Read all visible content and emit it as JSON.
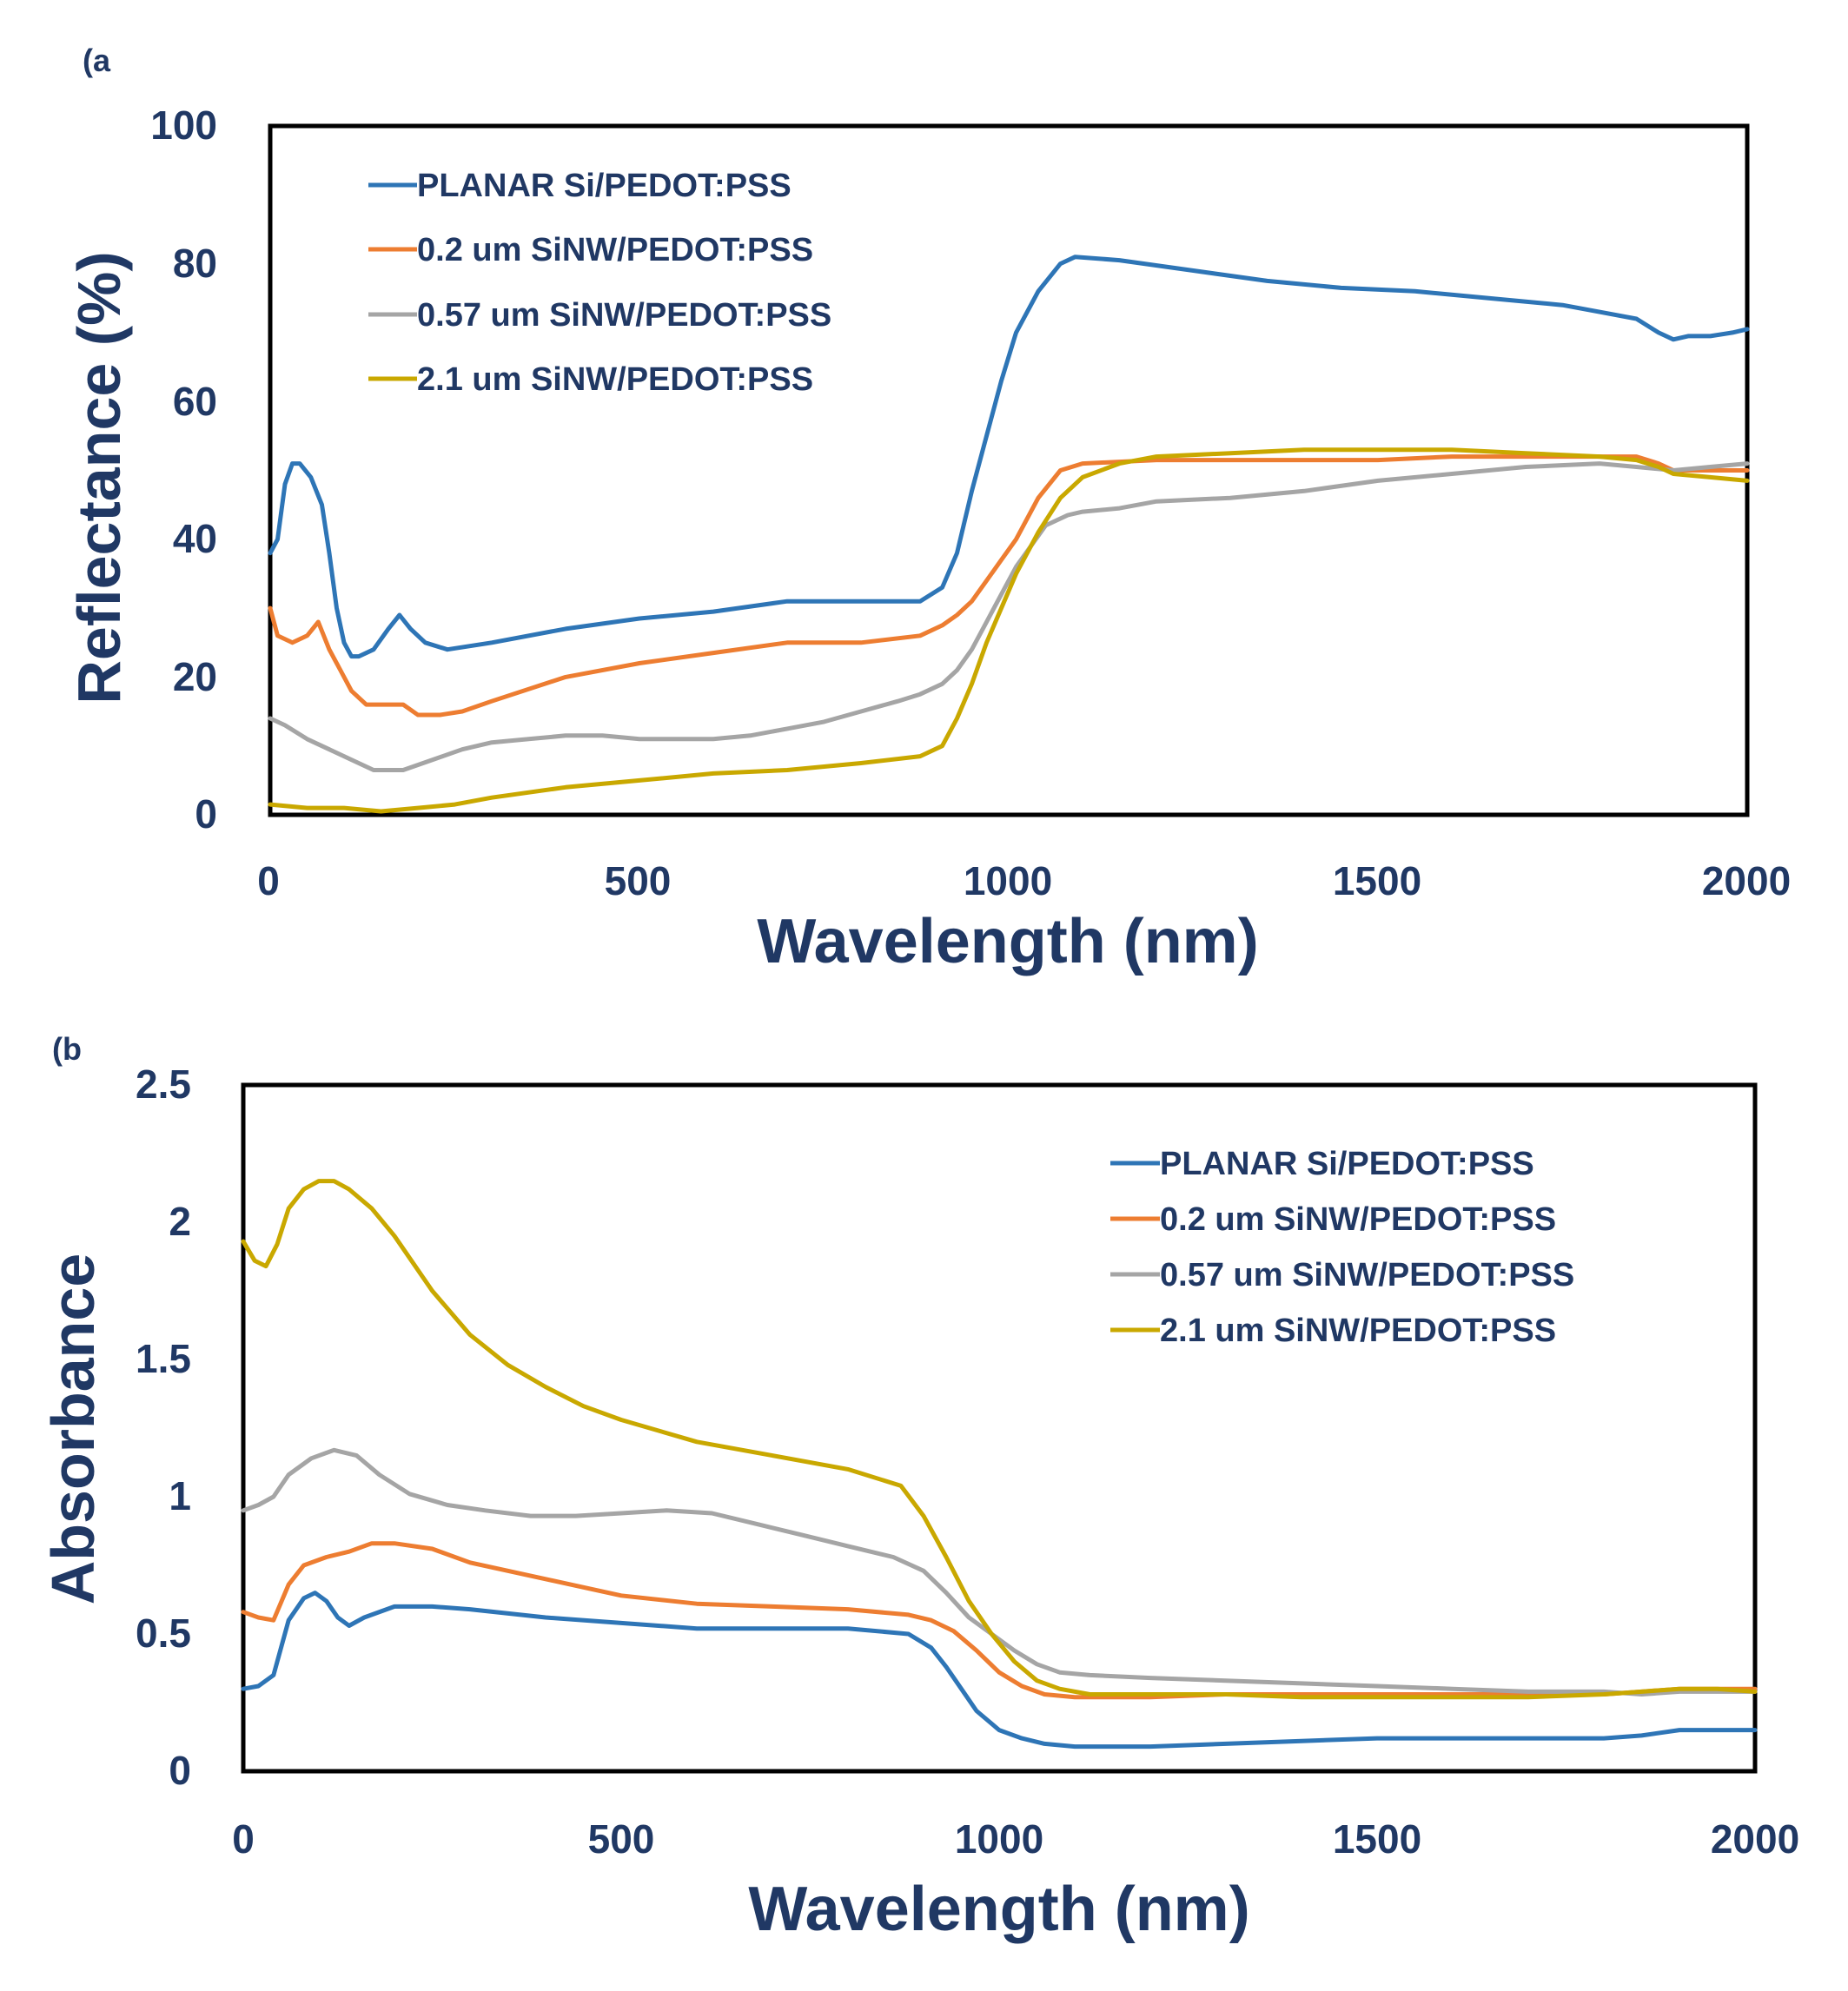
{
  "chart_data": [
    {
      "type": "line",
      "panel_label": "(a",
      "xlabel": "Wavelength (nm)",
      "ylabel": "Reflectance (%)",
      "xlim": [
        0,
        2000
      ],
      "ylim": [
        0,
        100
      ],
      "xticks": [
        "0",
        "500",
        "1000",
        "1500",
        "2000"
      ],
      "yticks": [
        "0",
        "20",
        "40",
        "60",
        "80",
        "100"
      ],
      "legend_position": "top-left",
      "grid": false,
      "series": [
        {
          "name": "PLANAR Si/PEDOT:PSS",
          "color": "#2E75B6",
          "x": [
            0,
            10,
            20,
            30,
            40,
            55,
            70,
            80,
            90,
            100,
            110,
            120,
            140,
            160,
            175,
            190,
            210,
            240,
            300,
            400,
            500,
            600,
            700,
            800,
            880,
            910,
            930,
            950,
            970,
            990,
            1010,
            1040,
            1070,
            1090,
            1150,
            1250,
            1350,
            1450,
            1550,
            1650,
            1750,
            1800,
            1850,
            1880,
            1900,
            1920,
            1950,
            1980,
            2000
          ],
          "values": [
            38,
            40,
            48,
            51,
            51,
            49,
            45,
            38,
            30,
            25,
            23,
            23,
            24,
            27,
            29,
            27,
            25,
            24,
            25,
            27,
            28.5,
            29.5,
            31,
            31,
            31,
            33,
            38,
            47,
            55,
            63,
            70,
            76,
            80,
            81,
            80.5,
            79,
            77.5,
            76.5,
            76,
            75,
            74,
            73,
            72,
            70,
            69,
            69.5,
            69.5,
            70,
            70.5
          ]
        },
        {
          "name": "0.2 um SiNW/PEDOT:PSS",
          "color": "#ED7D31",
          "x": [
            0,
            10,
            30,
            50,
            65,
            80,
            95,
            110,
            130,
            160,
            180,
            200,
            230,
            260,
            300,
            400,
            500,
            600,
            700,
            800,
            880,
            910,
            930,
            950,
            970,
            990,
            1010,
            1040,
            1070,
            1100,
            1200,
            1300,
            1400,
            1500,
            1600,
            1700,
            1800,
            1850,
            1880,
            1900,
            1950,
            2000
          ],
          "values": [
            30,
            26,
            25,
            26,
            28,
            24,
            21,
            18,
            16,
            16,
            16,
            14.5,
            14.5,
            15,
            16.5,
            20,
            22,
            23.5,
            25,
            25,
            26,
            27.5,
            29,
            31,
            34,
            37,
            40,
            46,
            50,
            51,
            51.5,
            51.5,
            51.5,
            51.5,
            52,
            52,
            52,
            52,
            51,
            50,
            50,
            50
          ]
        },
        {
          "name": "0.57 um SiNW/PEDOT:PSS",
          "color": "#A5A5A5",
          "x": [
            0,
            20,
            50,
            80,
            110,
            140,
            180,
            220,
            260,
            300,
            350,
            400,
            450,
            500,
            550,
            600,
            650,
            700,
            750,
            800,
            850,
            880,
            910,
            930,
            950,
            970,
            990,
            1010,
            1030,
            1050,
            1080,
            1100,
            1150,
            1200,
            1300,
            1400,
            1500,
            1600,
            1700,
            1800,
            1850,
            1900,
            1950,
            2000
          ],
          "values": [
            14,
            13,
            11,
            9.5,
            8,
            6.5,
            6.5,
            8,
            9.5,
            10.5,
            11,
            11.5,
            11.5,
            11,
            11,
            11,
            11.5,
            12.5,
            13.5,
            15,
            16.5,
            17.5,
            19,
            21,
            24,
            28,
            32,
            36,
            39,
            42,
            43.5,
            44,
            44.5,
            45.5,
            46,
            47,
            48.5,
            49.5,
            50.5,
            51,
            50.5,
            50,
            50.5,
            51
          ]
        },
        {
          "name": "2.1 um SiNW/PEDOT:PSS",
          "color": "#C9A800",
          "x": [
            0,
            50,
            100,
            150,
            200,
            250,
            300,
            400,
            500,
            600,
            700,
            800,
            880,
            910,
            930,
            950,
            970,
            990,
            1010,
            1040,
            1070,
            1100,
            1150,
            1200,
            1300,
            1400,
            1500,
            1600,
            1700,
            1800,
            1850,
            1880,
            1900,
            1950,
            2000
          ],
          "values": [
            1.5,
            1,
            1,
            0.5,
            1,
            1.5,
            2.5,
            4,
            5,
            6,
            6.5,
            7.5,
            8.5,
            10,
            14,
            19,
            25,
            30,
            35,
            41,
            46,
            49,
            51,
            52,
            52.5,
            53,
            53,
            53,
            52.5,
            52,
            51.5,
            50.5,
            49.5,
            49,
            48.5
          ]
        }
      ]
    },
    {
      "type": "line",
      "panel_label": "(b",
      "xlabel": "Wavelength (nm)",
      "ylabel": "Absorbance",
      "xlim": [
        0,
        2000
      ],
      "ylim": [
        0,
        2.5
      ],
      "xticks": [
        "0",
        "500",
        "1000",
        "1500",
        "2000"
      ],
      "yticks": [
        "0",
        "0.5",
        "1",
        "1.5",
        "2",
        "2.5"
      ],
      "legend_position": "top-right",
      "grid": false,
      "series": [
        {
          "name": "PLANAR Si/PEDOT:PSS",
          "color": "#2E75B6",
          "x": [
            0,
            20,
            40,
            60,
            80,
            95,
            110,
            125,
            140,
            160,
            200,
            250,
            300,
            400,
            500,
            600,
            700,
            800,
            880,
            910,
            930,
            950,
            970,
            1000,
            1030,
            1060,
            1100,
            1150,
            1200,
            1300,
            1400,
            1500,
            1600,
            1700,
            1800,
            1850,
            1900,
            1950,
            2000
          ],
          "values": [
            0.3,
            0.31,
            0.35,
            0.55,
            0.63,
            0.65,
            0.62,
            0.56,
            0.53,
            0.56,
            0.6,
            0.6,
            0.59,
            0.56,
            0.54,
            0.52,
            0.52,
            0.52,
            0.5,
            0.45,
            0.38,
            0.3,
            0.22,
            0.15,
            0.12,
            0.1,
            0.09,
            0.09,
            0.09,
            0.1,
            0.11,
            0.12,
            0.12,
            0.12,
            0.12,
            0.13,
            0.15,
            0.15,
            0.15
          ]
        },
        {
          "name": "0.2 um SiNW/PEDOT:PSS",
          "color": "#ED7D31",
          "x": [
            0,
            20,
            40,
            60,
            80,
            110,
            140,
            170,
            200,
            250,
            300,
            400,
            500,
            600,
            700,
            800,
            880,
            910,
            940,
            970,
            1000,
            1030,
            1060,
            1100,
            1200,
            1300,
            1400,
            1500,
            1600,
            1700,
            1800,
            1850,
            1900,
            1950,
            2000
          ],
          "values": [
            0.58,
            0.56,
            0.55,
            0.68,
            0.75,
            0.78,
            0.8,
            0.83,
            0.83,
            0.81,
            0.76,
            0.7,
            0.64,
            0.61,
            0.6,
            0.59,
            0.57,
            0.55,
            0.51,
            0.44,
            0.36,
            0.31,
            0.28,
            0.27,
            0.27,
            0.28,
            0.28,
            0.28,
            0.28,
            0.28,
            0.28,
            0.29,
            0.3,
            0.3,
            0.3
          ]
        },
        {
          "name": "0.57 um SiNW/PEDOT:PSS",
          "color": "#A5A5A5",
          "x": [
            0,
            20,
            40,
            60,
            90,
            120,
            150,
            180,
            220,
            270,
            320,
            380,
            440,
            500,
            560,
            620,
            680,
            740,
            800,
            860,
            900,
            930,
            960,
            990,
            1020,
            1050,
            1080,
            1120,
            1200,
            1300,
            1400,
            1500,
            1600,
            1700,
            1800,
            1850,
            1900,
            1950,
            2000
          ],
          "values": [
            0.95,
            0.97,
            1.0,
            1.08,
            1.14,
            1.17,
            1.15,
            1.08,
            1.01,
            0.97,
            0.95,
            0.93,
            0.93,
            0.94,
            0.95,
            0.94,
            0.9,
            0.86,
            0.82,
            0.78,
            0.73,
            0.65,
            0.56,
            0.5,
            0.44,
            0.39,
            0.36,
            0.35,
            0.34,
            0.33,
            0.32,
            0.31,
            0.3,
            0.29,
            0.29,
            0.28,
            0.29,
            0.29,
            0.29
          ]
        },
        {
          "name": "2.1 um SiNW/PEDOT:PSS",
          "color": "#C9A800",
          "x": [
            0,
            15,
            30,
            45,
            60,
            80,
            100,
            120,
            140,
            170,
            200,
            250,
            300,
            350,
            400,
            450,
            500,
            600,
            700,
            800,
            870,
            900,
            930,
            960,
            990,
            1020,
            1050,
            1080,
            1120,
            1200,
            1300,
            1400,
            1500,
            1600,
            1700,
            1800,
            1850,
            1900,
            1950,
            2000
          ],
          "values": [
            1.93,
            1.86,
            1.84,
            1.92,
            2.05,
            2.12,
            2.15,
            2.15,
            2.12,
            2.05,
            1.95,
            1.75,
            1.59,
            1.48,
            1.4,
            1.33,
            1.28,
            1.2,
            1.15,
            1.1,
            1.04,
            0.93,
            0.78,
            0.62,
            0.5,
            0.4,
            0.33,
            0.3,
            0.28,
            0.28,
            0.28,
            0.27,
            0.27,
            0.27,
            0.27,
            0.28,
            0.29,
            0.3,
            0.3,
            0.29
          ]
        }
      ]
    }
  ]
}
